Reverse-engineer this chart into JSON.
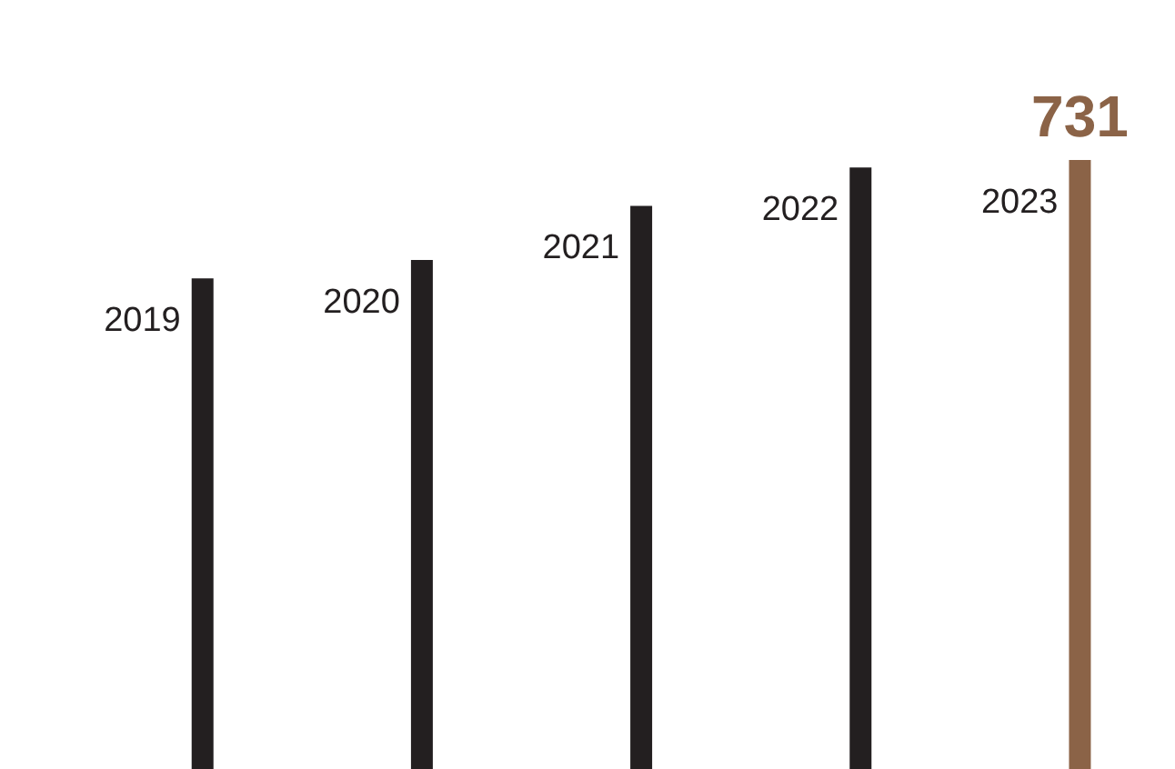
{
  "chart_data": {
    "type": "bar",
    "categories": [
      "2019",
      "2020",
      "2021",
      "2022",
      "2023"
    ],
    "values": [
      589,
      611,
      676,
      722,
      731
    ],
    "colors": [
      "#231f20",
      "#231f20",
      "#231f20",
      "#231f20",
      "#8b6347"
    ],
    "value_labels": [
      null,
      null,
      null,
      null,
      "731"
    ]
  }
}
